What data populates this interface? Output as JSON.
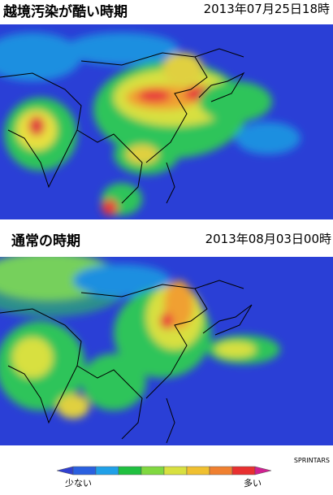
{
  "panels": [
    {
      "title": "越境汚染が酷い時期",
      "timestamp": "2013年07月25日18時"
    },
    {
      "title": "通常の時期",
      "timestamp": "2013年08月03日00時"
    }
  ],
  "credit": "SPRINTARS",
  "legend": {
    "low": "少ない",
    "high": "多い"
  }
}
